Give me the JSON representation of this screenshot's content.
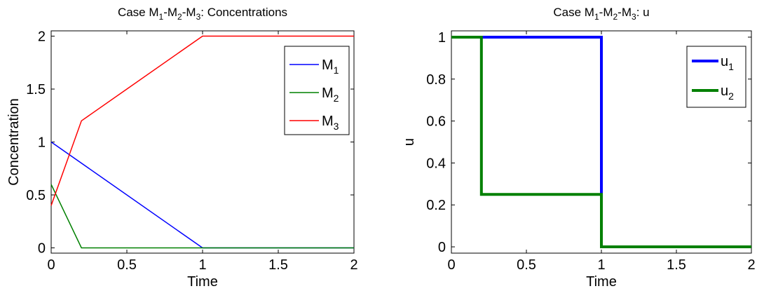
{
  "chart_data": [
    {
      "type": "line",
      "title_parts": [
        "Case M",
        "1",
        "-M",
        "2",
        "-M",
        "3",
        ": Concentrations"
      ],
      "xlabel": "Time",
      "ylabel": "Concentration",
      "xlim": [
        0,
        2
      ],
      "ylim": [
        -0.05,
        2.05
      ],
      "xticks": [
        "0",
        "0.5",
        "1",
        "1.5",
        "2"
      ],
      "yticks": [
        "0",
        "0.5",
        "1",
        "1.5",
        "2"
      ],
      "xtick_values": [
        0,
        0.5,
        1,
        1.5,
        2
      ],
      "ytick_values": [
        0,
        0.5,
        1,
        1.5,
        2
      ],
      "legend_position": "top-right",
      "series": [
        {
          "name": "M",
          "sub": "1",
          "color": "#0000ff",
          "x": [
            0,
            1,
            2
          ],
          "y": [
            1.0,
            0.0,
            0.0
          ]
        },
        {
          "name": "M",
          "sub": "2",
          "color": "#008000",
          "x": [
            0,
            0.2,
            2
          ],
          "y": [
            0.6,
            0.0,
            0.0
          ]
        },
        {
          "name": "M",
          "sub": "3",
          "color": "#ff0000",
          "x": [
            0,
            0.2,
            1,
            2
          ],
          "y": [
            0.4,
            1.2,
            2.0,
            2.0
          ]
        }
      ]
    },
    {
      "type": "line",
      "title_parts": [
        "Case M",
        "1",
        "-M",
        "2",
        "-M",
        "3",
        ": u"
      ],
      "xlabel": "Time",
      "ylabel": "u",
      "xlim": [
        0,
        2
      ],
      "ylim": [
        -0.03,
        1.03
      ],
      "xticks": [
        "0",
        "0.5",
        "1",
        "1.5",
        "2"
      ],
      "yticks": [
        "0",
        "0.2",
        "0.4",
        "0.6",
        "0.8",
        "1"
      ],
      "xtick_values": [
        0,
        0.5,
        1,
        1.5,
        2
      ],
      "ytick_values": [
        0,
        0.2,
        0.4,
        0.6,
        0.8,
        1
      ],
      "legend_position": "top-right",
      "series": [
        {
          "name": "u",
          "sub": "1",
          "color": "#0000ff",
          "x": [
            0,
            1,
            1,
            2
          ],
          "y": [
            1,
            1,
            0,
            0
          ]
        },
        {
          "name": "u",
          "sub": "2",
          "color": "#008000",
          "x": [
            0,
            0.2,
            0.2,
            1,
            1,
            2
          ],
          "y": [
            1,
            1,
            0.25,
            0.25,
            0,
            0
          ]
        }
      ]
    }
  ]
}
